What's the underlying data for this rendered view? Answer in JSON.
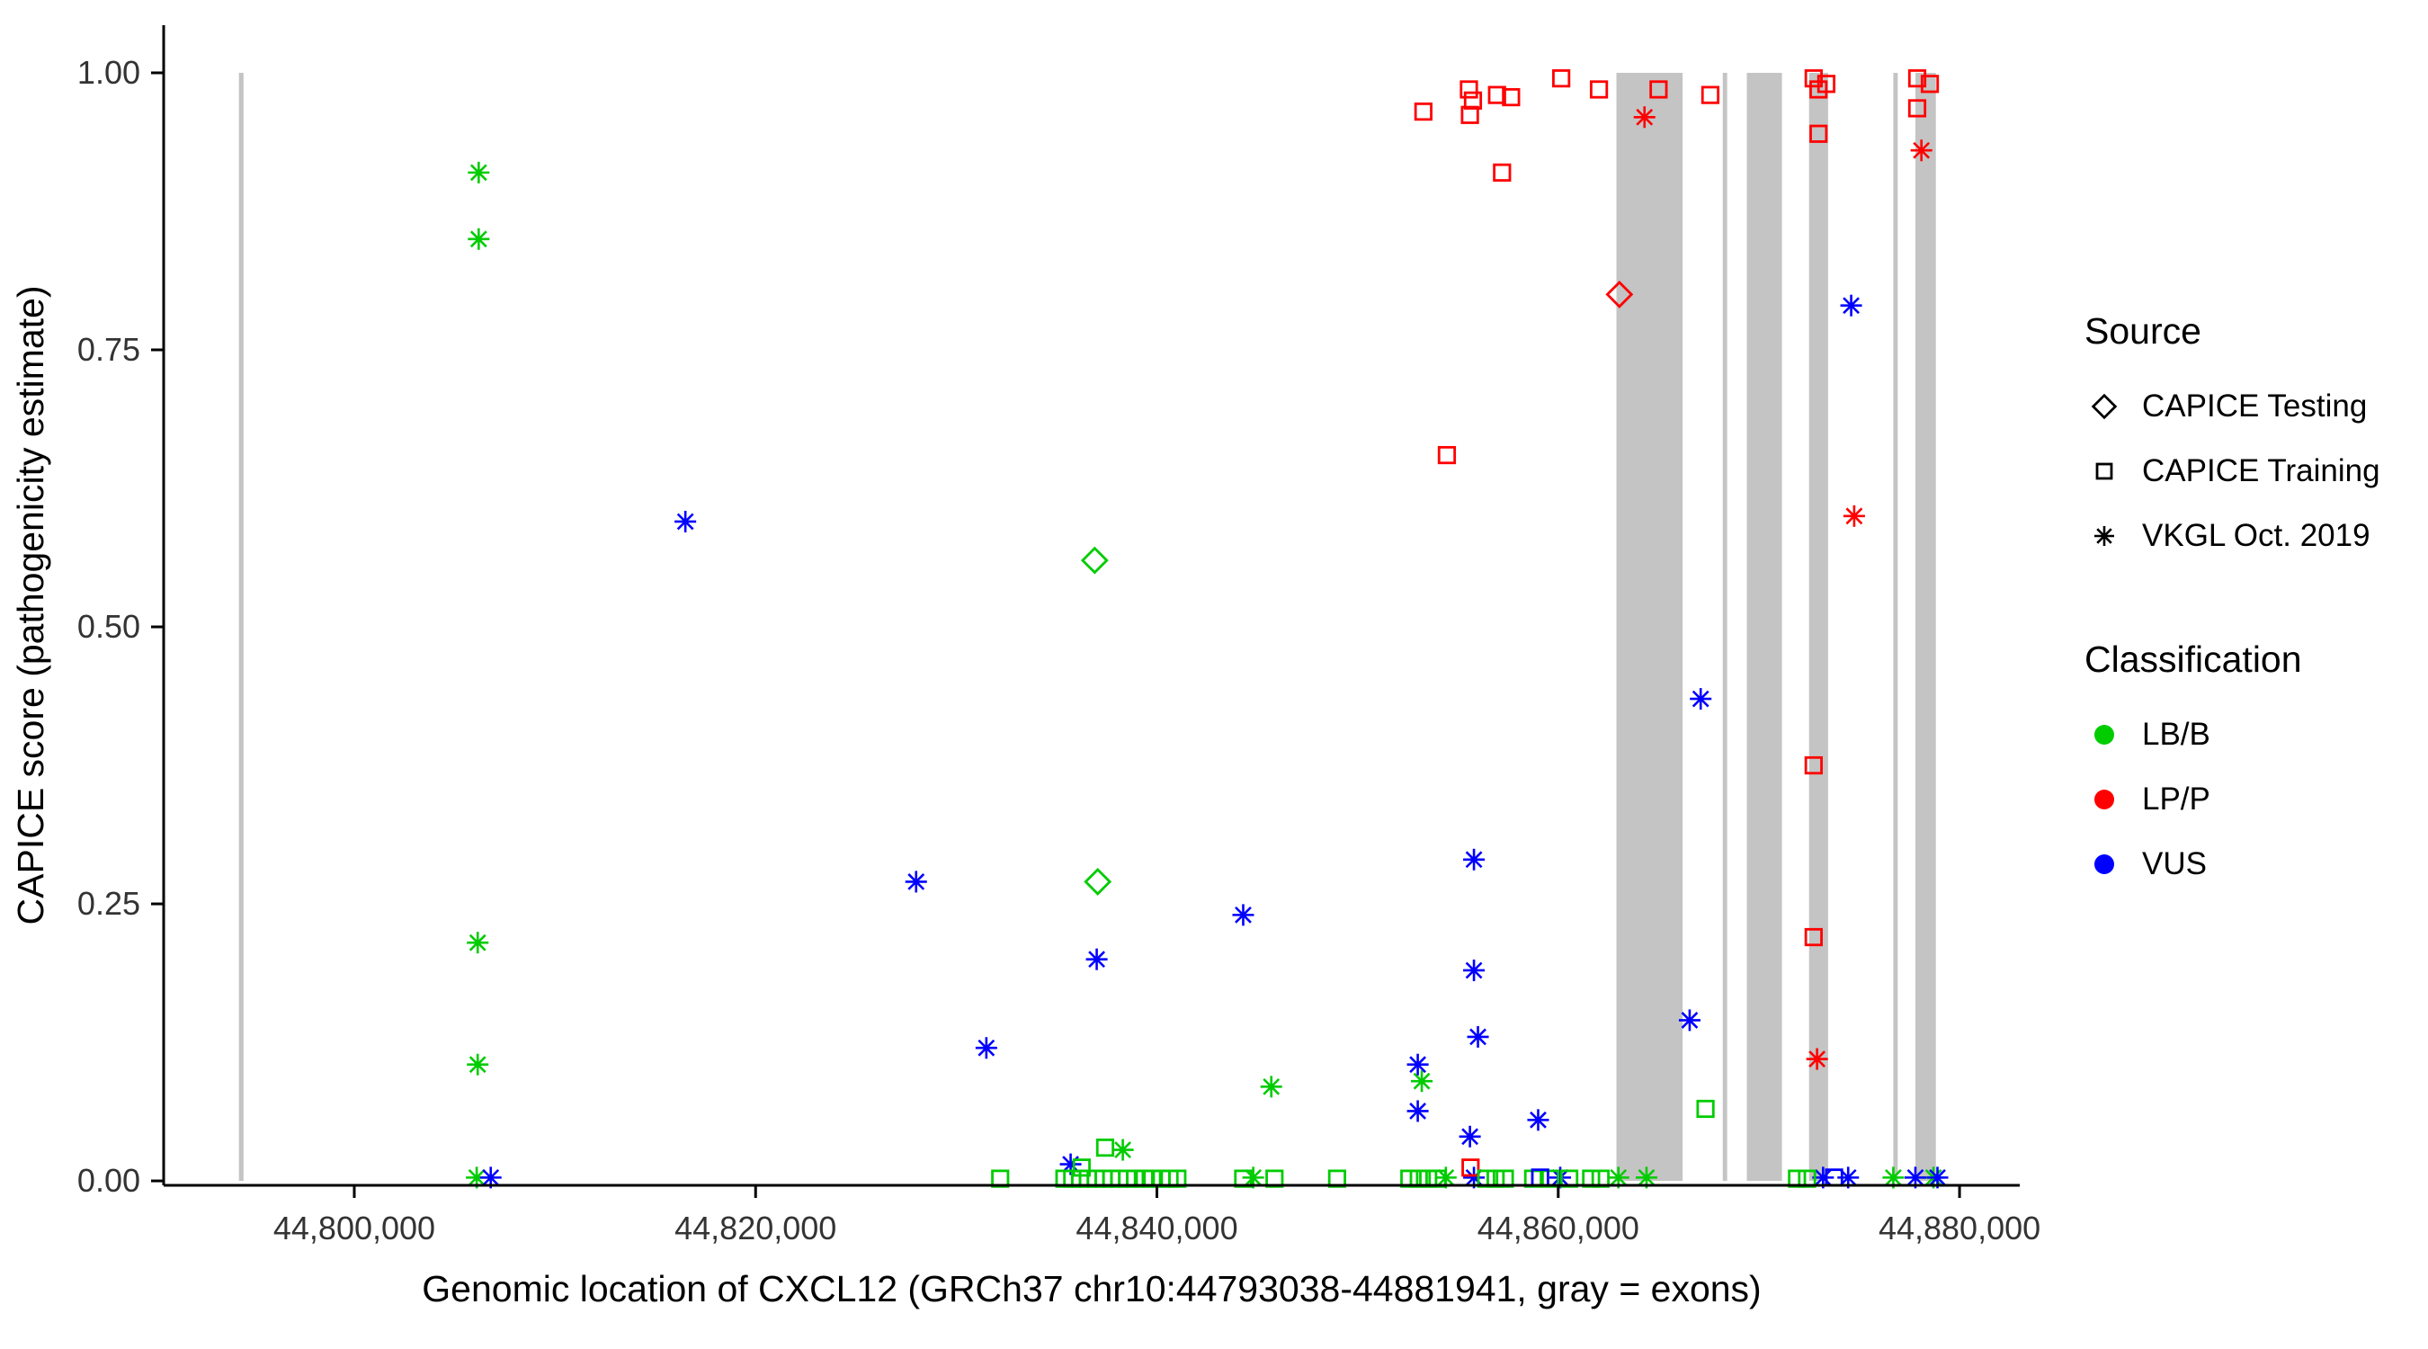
{
  "chart_data": {
    "type": "scatter",
    "title": "",
    "xlabel": "Genomic location of CXCL12 (GRCh37 chr10:44793038-44881941, gray = exons)",
    "ylabel": "CAPICE score (pathogenicity estimate)",
    "xlim": [
      44790500,
      44883000
    ],
    "ylim": [
      -0.004,
      1.043
    ],
    "x_ticks": [
      44800000,
      44820000,
      44840000,
      44860000,
      44880000
    ],
    "x_tick_labels": [
      "44,800,000",
      "44,820,000",
      "44,840,000",
      "44,860,000",
      "44,880,000"
    ],
    "y_ticks": [
      0,
      0.25,
      0.5,
      0.75,
      1.0
    ],
    "y_tick_labels": [
      "0.00",
      "0.25",
      "0.50",
      "0.75",
      "1.00"
    ],
    "grid": "off",
    "legend_position": "right",
    "exon_color": "#c4c4c4",
    "exons": [
      [
        44794250,
        44794480
      ],
      [
        44862900,
        44866200
      ],
      [
        44868200,
        44868420
      ],
      [
        44869400,
        44871150
      ],
      [
        44872500,
        44873450
      ],
      [
        44876700,
        44876920
      ],
      [
        44877800,
        44878820
      ]
    ],
    "classification_colors": {
      "LB/B": "#00cc00",
      "LP/P": "#ff0000",
      "VUS": "#0000ff"
    },
    "source_shapes": {
      "testing": "diamond",
      "training": "square",
      "vkgl": "asterisk"
    },
    "source_labels": {
      "testing": "CAPICE Testing",
      "training": "CAPICE Training",
      "vkgl": "VKGL Oct. 2019"
    },
    "points": [
      [
        44806200,
        0.91,
        "LB/B",
        "vkgl"
      ],
      [
        44806200,
        0.85,
        "LB/B",
        "vkgl"
      ],
      [
        44806150,
        0.215,
        "LB/B",
        "vkgl"
      ],
      [
        44806150,
        0.105,
        "LB/B",
        "vkgl"
      ],
      [
        44806100,
        0.003,
        "LB/B",
        "vkgl"
      ],
      [
        44838300,
        0.028,
        "LB/B",
        "vkgl"
      ],
      [
        44845700,
        0.085,
        "LB/B",
        "vkgl"
      ],
      [
        44853200,
        0.09,
        "LB/B",
        "vkgl"
      ],
      [
        44844800,
        0.003,
        "LB/B",
        "vkgl"
      ],
      [
        44854400,
        0.003,
        "LB/B",
        "vkgl"
      ],
      [
        44863000,
        0.003,
        "LB/B",
        "vkgl"
      ],
      [
        44864400,
        0.003,
        "LB/B",
        "vkgl"
      ],
      [
        44876700,
        0.003,
        "LB/B",
        "vkgl"
      ],
      [
        44878700,
        0.003,
        "LB/B",
        "vkgl"
      ],
      [
        44816500,
        0.595,
        "VUS",
        "vkgl"
      ],
      [
        44828000,
        0.27,
        "VUS",
        "vkgl"
      ],
      [
        44831500,
        0.12,
        "VUS",
        "vkgl"
      ],
      [
        44837000,
        0.2,
        "VUS",
        "vkgl"
      ],
      [
        44835700,
        0.015,
        "VUS",
        "vkgl"
      ],
      [
        44844300,
        0.24,
        "VUS",
        "vkgl"
      ],
      [
        44853000,
        0.105,
        "VUS",
        "vkgl"
      ],
      [
        44853000,
        0.063,
        "VUS",
        "vkgl"
      ],
      [
        44855800,
        0.29,
        "VUS",
        "vkgl"
      ],
      [
        44855800,
        0.19,
        "VUS",
        "vkgl"
      ],
      [
        44856000,
        0.13,
        "VUS",
        "vkgl"
      ],
      [
        44855600,
        0.04,
        "VUS",
        "vkgl"
      ],
      [
        44859000,
        0.055,
        "VUS",
        "vkgl"
      ],
      [
        44867100,
        0.435,
        "VUS",
        "vkgl"
      ],
      [
        44866550,
        0.145,
        "VUS",
        "vkgl"
      ],
      [
        44874600,
        0.79,
        "VUS",
        "vkgl"
      ],
      [
        44806800,
        0.003,
        "VUS",
        "vkgl"
      ],
      [
        44855800,
        0.003,
        "VUS",
        "vkgl"
      ],
      [
        44860100,
        0.003,
        "VUS",
        "vkgl"
      ],
      [
        44873200,
        0.003,
        "VUS",
        "vkgl"
      ],
      [
        44874450,
        0.003,
        "VUS",
        "vkgl"
      ],
      [
        44877800,
        0.003,
        "VUS",
        "vkgl"
      ],
      [
        44878900,
        0.003,
        "VUS",
        "vkgl"
      ],
      [
        44864300,
        0.96,
        "LP/P",
        "vkgl"
      ],
      [
        44874750,
        0.6,
        "LP/P",
        "vkgl"
      ],
      [
        44872900,
        0.11,
        "LP/P",
        "vkgl"
      ],
      [
        44878100,
        0.93,
        "LP/P",
        "vkgl"
      ],
      [
        44836900,
        0.56,
        "LB/B",
        "testing"
      ],
      [
        44837050,
        0.27,
        "LB/B",
        "testing"
      ],
      [
        44863050,
        0.8,
        "LP/P",
        "testing"
      ],
      [
        44853280,
        0.965,
        "LP/P",
        "training"
      ],
      [
        44855550,
        0.985,
        "LP/P",
        "training"
      ],
      [
        44855750,
        0.975,
        "LP/P",
        "training"
      ],
      [
        44855600,
        0.962,
        "LP/P",
        "training"
      ],
      [
        44856950,
        0.98,
        "LP/P",
        "training"
      ],
      [
        44857650,
        0.978,
        "LP/P",
        "training"
      ],
      [
        44857200,
        0.91,
        "LP/P",
        "training"
      ],
      [
        44854450,
        0.655,
        "LP/P",
        "training"
      ],
      [
        44860150,
        0.995,
        "LP/P",
        "training"
      ],
      [
        44862030,
        0.985,
        "LP/P",
        "training"
      ],
      [
        44865000,
        0.985,
        "LP/P",
        "training"
      ],
      [
        44867580,
        0.98,
        "LP/P",
        "training"
      ],
      [
        44872730,
        0.995,
        "LP/P",
        "training"
      ],
      [
        44873360,
        0.99,
        "LP/P",
        "training"
      ],
      [
        44872970,
        0.985,
        "LP/P",
        "training"
      ],
      [
        44872970,
        0.945,
        "LP/P",
        "training"
      ],
      [
        44872730,
        0.375,
        "LP/P",
        "training"
      ],
      [
        44872730,
        0.22,
        "LP/P",
        "training"
      ],
      [
        44877890,
        0.995,
        "LP/P",
        "training"
      ],
      [
        44878520,
        0.99,
        "LP/P",
        "training"
      ],
      [
        44877890,
        0.968,
        "LP/P",
        "training"
      ],
      [
        44855630,
        0.012,
        "LP/P",
        "training"
      ],
      [
        44867340,
        0.065,
        "LB/B",
        "training"
      ],
      [
        44837420,
        0.03,
        "LB/B",
        "training"
      ],
      [
        44836250,
        0.012,
        "LB/B",
        "training"
      ],
      [
        44832190,
        0.002,
        "LB/B",
        "training"
      ],
      [
        44835390,
        0.002,
        "LB/B",
        "training"
      ],
      [
        44835780,
        0.002,
        "LB/B",
        "training"
      ],
      [
        44836170,
        0.002,
        "LB/B",
        "training"
      ],
      [
        44836560,
        0.002,
        "LB/B",
        "training"
      ],
      [
        44836950,
        0.002,
        "LB/B",
        "training"
      ],
      [
        44837340,
        0.002,
        "LB/B",
        "training"
      ],
      [
        44837730,
        0.002,
        "LB/B",
        "training"
      ],
      [
        44838130,
        0.002,
        "LB/B",
        "training"
      ],
      [
        44838520,
        0.002,
        "LB/B",
        "training"
      ],
      [
        44838910,
        0.002,
        "LB/B",
        "training"
      ],
      [
        44839380,
        0.002,
        "LB/B",
        "training"
      ],
      [
        44839770,
        0.002,
        "LB/B",
        "training"
      ],
      [
        44840230,
        0.002,
        "LB/B",
        "training"
      ],
      [
        44840630,
        0.002,
        "LB/B",
        "training"
      ],
      [
        44841020,
        0.002,
        "LB/B",
        "training"
      ],
      [
        44844300,
        0.002,
        "LB/B",
        "training"
      ],
      [
        44845860,
        0.002,
        "LB/B",
        "training"
      ],
      [
        44848980,
        0.002,
        "LB/B",
        "training"
      ],
      [
        44852580,
        0.002,
        "LB/B",
        "training"
      ],
      [
        44853050,
        0.002,
        "LB/B",
        "training"
      ],
      [
        44853520,
        0.002,
        "LB/B",
        "training"
      ],
      [
        44853980,
        0.002,
        "LB/B",
        "training"
      ],
      [
        44856410,
        0.002,
        "LB/B",
        "training"
      ],
      [
        44856880,
        0.002,
        "LB/B",
        "training"
      ],
      [
        44857340,
        0.002,
        "LB/B",
        "training"
      ],
      [
        44858750,
        0.002,
        "LB/B",
        "training"
      ],
      [
        44859610,
        0.002,
        "LB/B",
        "training"
      ],
      [
        44860550,
        0.002,
        "LB/B",
        "training"
      ],
      [
        44861640,
        0.002,
        "LB/B",
        "training"
      ],
      [
        44862110,
        0.002,
        "LB/B",
        "training"
      ],
      [
        44871900,
        0.002,
        "LB/B",
        "training"
      ],
      [
        44872400,
        0.002,
        "LB/B",
        "training"
      ],
      [
        44859100,
        0.003,
        "VUS",
        "training"
      ],
      [
        44873750,
        0.003,
        "VUS",
        "training"
      ]
    ]
  },
  "legend": {
    "source_title": "Source",
    "source_items": [
      {
        "label": "CAPICE Testing",
        "shape": "diamond"
      },
      {
        "label": "CAPICE Training",
        "shape": "square"
      },
      {
        "label": "VKGL Oct. 2019",
        "shape": "asterisk"
      }
    ],
    "classification_title": "Classification",
    "classification_items": [
      {
        "label": "LB/B",
        "color": "#00cc00"
      },
      {
        "label": "LP/P",
        "color": "#ff0000"
      },
      {
        "label": "VUS",
        "color": "#0000ff"
      }
    ]
  }
}
